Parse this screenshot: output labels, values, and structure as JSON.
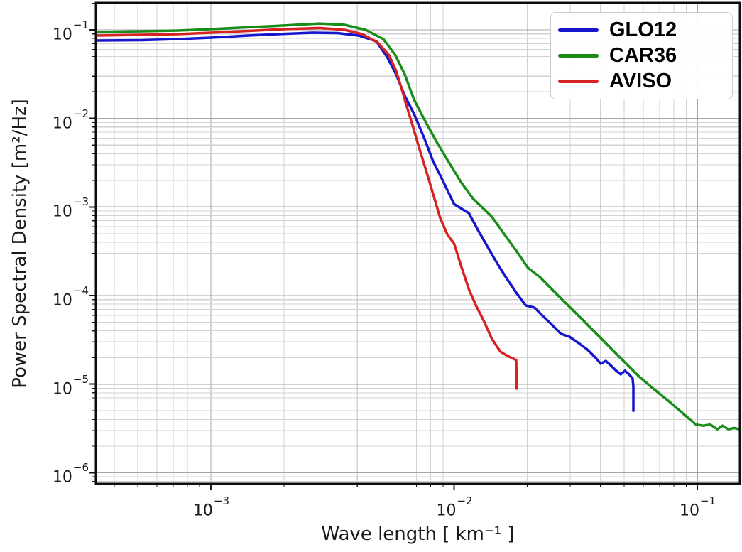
{
  "chart_data": {
    "type": "line",
    "x_scale": "log",
    "y_scale": "log",
    "xlabel": "Wave length [ km⁻¹ ]",
    "ylabel": "Power Spectral Density [m²/Hz]",
    "xlim": [
      0.000336,
      0.15
    ],
    "ylim": [
      7.5e-07,
      0.2
    ],
    "xlim_log10": [
      -3.473,
      -0.825
    ],
    "ylim_log10": [
      -6.125,
      -0.695
    ],
    "x_tick_exponents": [
      -3,
      -2,
      -1
    ],
    "y_tick_exponents": [
      -1,
      -2,
      -3,
      -4,
      -5,
      -6
    ],
    "grid": {
      "major": true,
      "minor": true,
      "major_color": "#a6a6a6",
      "minor_color": "#d2d2d2"
    },
    "legend_position": "upper right",
    "axes_border_color": "#0d0d0d",
    "series": [
      {
        "name": "GLO12",
        "color": "#1515cd",
        "points": [
          [
            0.000337,
            0.0758
          ],
          [
            0.000521,
            0.0765
          ],
          [
            0.000729,
            0.0787
          ],
          [
            0.001,
            0.0816
          ],
          [
            0.00143,
            0.0863
          ],
          [
            0.002,
            0.0903
          ],
          [
            0.00262,
            0.0929
          ],
          [
            0.00331,
            0.092
          ],
          [
            0.00405,
            0.0863
          ],
          [
            0.00479,
            0.0744
          ],
          [
            0.0053,
            0.0496
          ],
          [
            0.00578,
            0.0313
          ],
          [
            0.00627,
            0.018
          ],
          [
            0.00684,
            0.0113
          ],
          [
            0.00751,
            0.00615
          ],
          [
            0.0082,
            0.00328
          ],
          [
            0.00895,
            0.00203
          ],
          [
            0.01,
            0.00108
          ],
          [
            0.0115,
            0.000853
          ],
          [
            0.0125,
            0.000558
          ],
          [
            0.0147,
            0.000257
          ],
          [
            0.0163,
            0.000162
          ],
          [
            0.018,
            0.000108
          ],
          [
            0.0197,
            7.74e-05
          ],
          [
            0.0214,
            7.32e-05
          ],
          [
            0.0232,
            5.86e-05
          ],
          [
            0.0249,
            4.87e-05
          ],
          [
            0.0275,
            3.7e-05
          ],
          [
            0.0298,
            3.43e-05
          ],
          [
            0.0325,
            2.91e-05
          ],
          [
            0.0353,
            2.46e-05
          ],
          [
            0.038,
            2.01e-05
          ],
          [
            0.0401,
            1.7e-05
          ],
          [
            0.042,
            1.83e-05
          ],
          [
            0.044,
            1.64e-05
          ],
          [
            0.0461,
            1.44e-05
          ],
          [
            0.0484,
            1.29e-05
          ],
          [
            0.0504,
            1.42e-05
          ],
          [
            0.0524,
            1.29e-05
          ],
          [
            0.0542,
            1.16e-05
          ],
          [
            0.0546,
            9.3e-06
          ],
          [
            0.0546,
            5e-06
          ]
        ]
      },
      {
        "name": "CAR36",
        "color": "#1a8c1a",
        "points": [
          [
            0.000337,
            0.0946
          ],
          [
            0.000521,
            0.0964
          ],
          [
            0.000729,
            0.0982
          ],
          [
            0.001,
            0.102
          ],
          [
            0.00143,
            0.107
          ],
          [
            0.002,
            0.112
          ],
          [
            0.0028,
            0.118
          ],
          [
            0.00354,
            0.114
          ],
          [
            0.00433,
            0.1
          ],
          [
            0.00512,
            0.0787
          ],
          [
            0.00574,
            0.0515
          ],
          [
            0.00627,
            0.0313
          ],
          [
            0.00684,
            0.0164
          ],
          [
            0.00767,
            0.0089
          ],
          [
            0.00859,
            0.00512
          ],
          [
            0.00957,
            0.00311
          ],
          [
            0.0107,
            0.00189
          ],
          [
            0.012,
            0.00123
          ],
          [
            0.0143,
            0.000778
          ],
          [
            0.0161,
            0.00049
          ],
          [
            0.018,
            0.000321
          ],
          [
            0.0201,
            0.000206
          ],
          [
            0.0225,
            0.000162
          ],
          [
            0.0257,
            0.000112
          ],
          [
            0.0294,
            7.74e-05
          ],
          [
            0.0337,
            5.35e-05
          ],
          [
            0.0385,
            3.7e-05
          ],
          [
            0.0471,
            2.12e-05
          ],
          [
            0.0576,
            1.22e-05
          ],
          [
            0.0659,
            8.9e-06
          ],
          [
            0.0754,
            6.6e-06
          ],
          [
            0.0863,
            4.8e-06
          ],
          [
            0.0987,
            3.5e-06
          ],
          [
            0.106,
            3.4e-06
          ],
          [
            0.113,
            3.5e-06
          ],
          [
            0.121,
            3.1e-06
          ],
          [
            0.127,
            3.4e-06
          ],
          [
            0.134,
            3.1e-06
          ],
          [
            0.142,
            3.2e-06
          ],
          [
            0.149,
            3.1e-06
          ]
        ]
      },
      {
        "name": "AVISO",
        "color": "#d62222",
        "points": [
          [
            0.000337,
            0.0863
          ],
          [
            0.000521,
            0.0879
          ],
          [
            0.000729,
            0.0895
          ],
          [
            0.001,
            0.0929
          ],
          [
            0.00143,
            0.0973
          ],
          [
            0.002,
            0.102
          ],
          [
            0.0028,
            0.105
          ],
          [
            0.00354,
            0.1
          ],
          [
            0.00419,
            0.0895
          ],
          [
            0.00486,
            0.0717
          ],
          [
            0.00541,
            0.0515
          ],
          [
            0.00578,
            0.0343
          ],
          [
            0.0061,
            0.0212
          ],
          [
            0.00635,
            0.0144
          ],
          [
            0.0067,
            0.0089
          ],
          [
            0.00717,
            0.00475
          ],
          [
            0.00767,
            0.00258
          ],
          [
            0.0082,
            0.0014
          ],
          [
            0.00877,
            0.00075
          ],
          [
            0.00938,
            0.00049
          ],
          [
            0.01,
            0.000386
          ],
          [
            0.0107,
            0.000214
          ],
          [
            0.0115,
            0.000118
          ],
          [
            0.0123,
            7.74e-05
          ],
          [
            0.0133,
            5.06e-05
          ],
          [
            0.0143,
            3.25e-05
          ],
          [
            0.0155,
            2.33e-05
          ],
          [
            0.0166,
            2.08e-05
          ],
          [
            0.018,
            1.87e-05
          ],
          [
            0.0181,
            8.9e-06
          ]
        ]
      }
    ]
  }
}
